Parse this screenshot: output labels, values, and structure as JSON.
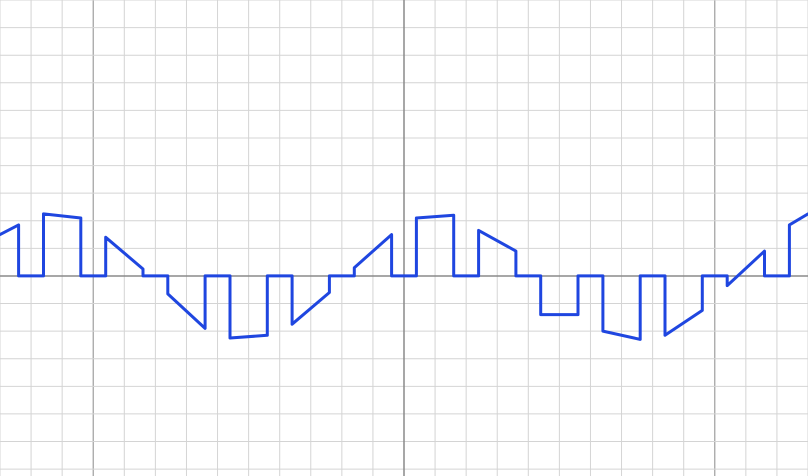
{
  "chart_data": {
    "type": "line",
    "title": "",
    "xlabel": "",
    "ylabel": "",
    "xlim": [
      -1.3,
      1.3
    ],
    "ylim": [
      -1.45,
      2.0
    ],
    "grid": true,
    "grid_minor_step_x": 0.1,
    "grid_minor_step_y": 0.2,
    "grid_major_step_x": 1.0,
    "series_color": "#1f46e0",
    "series": [
      {
        "x": [
          -1.3,
          -1.24,
          -1.24,
          -1.16,
          -1.16,
          -1.04,
          -1.04,
          -0.96,
          -0.96,
          -0.84,
          -0.84,
          -0.76,
          -0.76,
          -0.64,
          -0.64,
          -0.56,
          -0.56,
          -0.44,
          -0.44,
          -0.36,
          -0.36,
          -0.24,
          -0.24,
          -0.16,
          -0.16,
          -0.04,
          -0.04,
          0.04,
          0.04,
          0.16,
          0.16,
          0.24,
          0.24,
          0.36,
          0.36,
          0.44,
          0.44,
          0.56,
          0.56,
          0.64,
          0.64,
          0.76,
          0.76,
          0.84,
          0.84,
          0.96,
          0.96,
          1.04,
          1.04,
          1.16,
          1.16,
          1.24,
          1.24,
          1.3
        ],
        "y": [
          0.3,
          0.37,
          0.0,
          0.0,
          0.45,
          0.42,
          0.0,
          0.0,
          0.28,
          0.05,
          0.0,
          0.0,
          -0.13,
          -0.38,
          0.0,
          0.0,
          -0.45,
          -0.43,
          0.0,
          0.0,
          -0.35,
          -0.12,
          0.0,
          0.0,
          0.06,
          0.3,
          0.0,
          0.0,
          0.42,
          0.44,
          0.0,
          0.0,
          0.33,
          0.18,
          0.0,
          0.0,
          -0.28,
          -0.28,
          0.0,
          0.0,
          -0.4,
          -0.46,
          0.0,
          0.0,
          -0.43,
          -0.25,
          0.0,
          0.0,
          -0.07,
          0.18,
          0.0,
          0.0,
          0.37,
          0.45
        ]
      }
    ]
  }
}
